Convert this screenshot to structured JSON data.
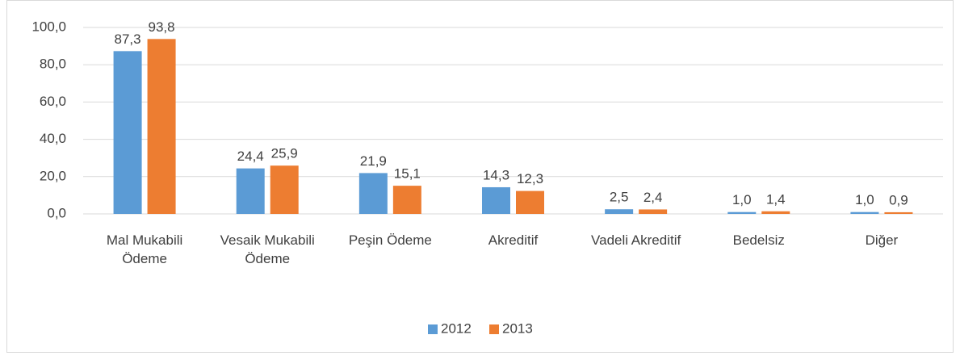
{
  "chart_data": {
    "type": "bar",
    "categories": [
      "Mal Mukabili Ödeme",
      "Vesaik Mukabili Ödeme",
      "Peşin Ödeme",
      "Akreditif",
      "Vadeli Akreditif",
      "Bedelsiz",
      "Diğer"
    ],
    "series": [
      {
        "name": "2012",
        "color": "#5b9bd5",
        "values": [
          87.3,
          24.4,
          21.9,
          14.3,
          2.5,
          1.0,
          1.0
        ],
        "value_labels": [
          "87,3",
          "24,4",
          "21,9",
          "14,3",
          "2,5",
          "1,0",
          "1,0"
        ]
      },
      {
        "name": "2013",
        "color": "#ed7d31",
        "values": [
          93.8,
          25.9,
          15.1,
          12.3,
          2.4,
          1.4,
          0.9
        ],
        "value_labels": [
          "93,8",
          "25,9",
          "15,1",
          "12,3",
          "2,4",
          "1,4",
          "0,9"
        ]
      }
    ],
    "ylim": [
      0,
      100
    ],
    "yticks": [
      {
        "value": 0,
        "label": "0,0"
      },
      {
        "value": 20,
        "label": "20,0"
      },
      {
        "value": 40,
        "label": "40,0"
      },
      {
        "value": 60,
        "label": "60,0"
      },
      {
        "value": 80,
        "label": "80,0"
      },
      {
        "value": 100,
        "label": "100,0"
      }
    ],
    "grid": true,
    "legend": "bottom"
  }
}
